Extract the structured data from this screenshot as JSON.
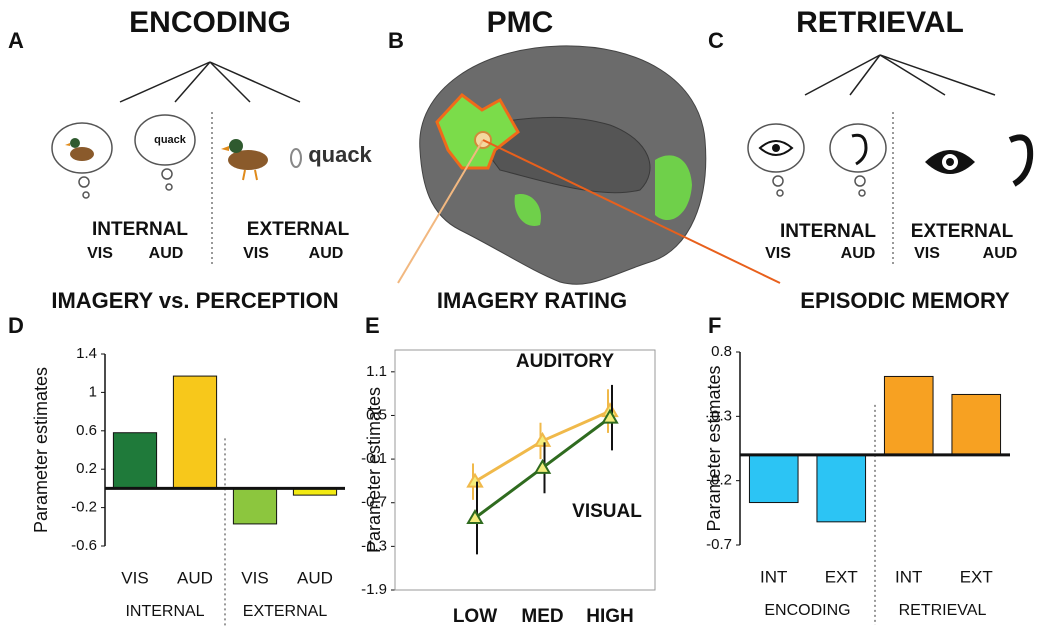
{
  "panels": {
    "a": {
      "letter": "A",
      "title": "ENCODING",
      "quack_internal": "quack",
      "quack_external": "quack",
      "groups": [
        {
          "name": "INTERNAL",
          "items": [
            "VIS",
            "AUD"
          ]
        },
        {
          "name": "EXTERNAL",
          "items": [
            "VIS",
            "AUD"
          ]
        }
      ]
    },
    "b": {
      "letter": "B",
      "title": "PMC"
    },
    "c": {
      "letter": "C",
      "title": "RETRIEVAL",
      "groups": [
        {
          "name": "INTERNAL",
          "items": [
            "VIS",
            "AUD"
          ]
        },
        {
          "name": "EXTERNAL",
          "items": [
            "VIS",
            "AUD"
          ]
        }
      ]
    }
  },
  "chart_data": [
    {
      "type": "bar",
      "letter": "D",
      "title": "IMAGERY vs. PERCEPTION",
      "y_label": "Parameter estimates",
      "categories": [
        "VIS",
        "AUD",
        "VIS",
        "AUD"
      ],
      "group_labels": [
        "INTERNAL",
        "EXTERNAL"
      ],
      "values": [
        0.58,
        1.17,
        -0.37,
        -0.07
      ],
      "colors": [
        "#1f7a3a",
        "#f7c81b",
        "#8cc63e",
        "#f2ea12"
      ],
      "ylim": [
        -0.6,
        1.4
      ],
      "yticks": [
        -0.6,
        -0.2,
        0.2,
        0.6,
        1,
        1.4
      ]
    },
    {
      "type": "line",
      "letter": "E",
      "title": "IMAGERY RATING",
      "y_label": "Parameter estimates",
      "categories": [
        "LOW",
        "MED",
        "HIGH"
      ],
      "series": [
        {
          "name": "AUDITORY",
          "color": "#f0b94a",
          "values": [
            -0.41,
            0.15,
            0.56
          ],
          "errors": [
            0.25,
            0.25,
            0.3
          ]
        },
        {
          "name": "VISUAL",
          "color": "#2f6b1f",
          "values": [
            -0.91,
            -0.22,
            0.47
          ],
          "errors": [
            0.5,
            0.35,
            0.45
          ]
        }
      ],
      "ylim": [
        -1.9,
        1.4
      ],
      "yticks": [
        -1.9,
        -1.3,
        -0.7,
        -0.1,
        0.5,
        1.1
      ]
    },
    {
      "type": "bar",
      "letter": "F",
      "title": "EPISODIC MEMORY",
      "y_label": "Parameter estimates",
      "categories": [
        "INT",
        "EXT",
        "INT",
        "EXT"
      ],
      "group_labels": [
        "ENCODING",
        "RETRIEVAL"
      ],
      "values": [
        -0.37,
        -0.52,
        0.61,
        0.47
      ],
      "colors": [
        "#2cc4f4",
        "#2cc4f4",
        "#f7a122",
        "#f7a122"
      ],
      "ylim": [
        -0.7,
        0.8
      ],
      "yticks": [
        -0.7,
        -0.2,
        0.3,
        0.8
      ]
    }
  ]
}
